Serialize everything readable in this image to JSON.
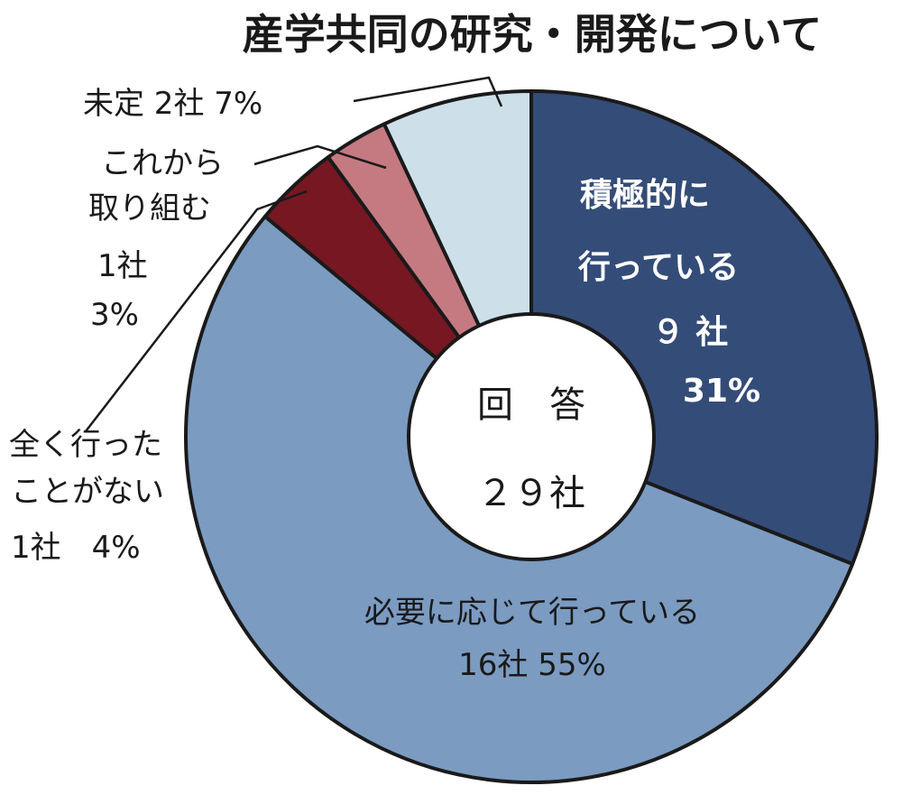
{
  "chart_data": {
    "type": "pie",
    "title": "産学共同の研究・開発について",
    "center_label": [
      "回　答",
      "２９社"
    ],
    "slices": [
      {
        "name": "積極的に行っている",
        "count": "9社",
        "value": 31,
        "percent": "31%",
        "color": "#344c78",
        "label_lines": [
          "積極的に",
          "行っている",
          "９ 社",
          "31%"
        ]
      },
      {
        "name": "必要に応じて行っている",
        "count": "16社",
        "value": 55,
        "percent": "55%",
        "color": "#7b9bc1",
        "label_lines": [
          "必要に応じて行っている",
          "16社 55%"
        ]
      },
      {
        "name": "全く行ったことがない",
        "count": "1社",
        "value": 4,
        "percent": "4%",
        "color": "#761722",
        "label_lines": [
          "全く行った",
          "ことがない",
          "1社　4%"
        ]
      },
      {
        "name": "これから取り組む",
        "count": "1社",
        "value": 3,
        "percent": "3%",
        "color": "#c47a80",
        "label_lines": [
          "これから",
          "取り組む",
          "1社",
          "3%"
        ]
      },
      {
        "name": "未定",
        "count": "2社",
        "value": 7,
        "percent": "7%",
        "color": "#cde0ea",
        "label_lines": [
          "未定 2社 7%"
        ]
      }
    ]
  }
}
